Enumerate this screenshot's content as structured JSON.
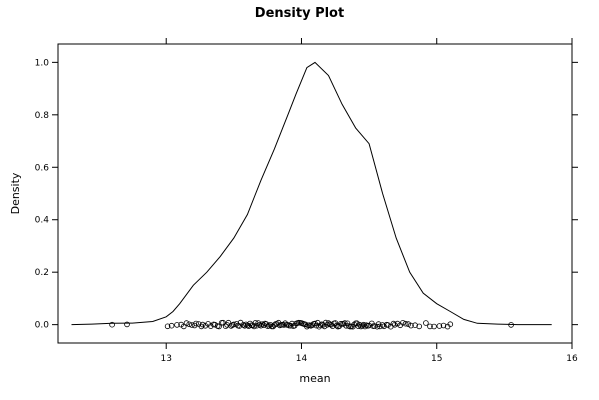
{
  "chart_data": {
    "type": "density",
    "title": "Density Plot",
    "xlabel": "mean",
    "ylabel": "Density",
    "xlim": [
      12.2,
      16.0
    ],
    "ylim": [
      -0.07,
      1.07
    ],
    "x_ticks": [
      13,
      14,
      15,
      16
    ],
    "x_tick_labels": [
      "13",
      "14",
      "15",
      "16"
    ],
    "y_ticks": [
      0.0,
      0.2,
      0.4,
      0.6,
      0.8,
      1.0
    ],
    "y_tick_labels": [
      "0.0",
      "0.2",
      "0.4",
      "0.6",
      "0.8",
      "1.0"
    ],
    "grid": false,
    "density_curve": {
      "x": [
        12.3,
        12.45,
        12.6,
        12.75,
        12.9,
        13.0,
        13.05,
        13.1,
        13.2,
        13.3,
        13.4,
        13.5,
        13.6,
        13.7,
        13.8,
        13.9,
        13.96,
        14.04,
        14.1,
        14.2,
        14.3,
        14.4,
        14.5,
        14.6,
        14.7,
        14.8,
        14.9,
        15.0,
        15.1,
        15.2,
        15.3,
        15.45,
        15.6,
        15.75,
        15.85
      ],
      "y": [
        0.0,
        0.002,
        0.005,
        0.006,
        0.012,
        0.03,
        0.05,
        0.08,
        0.15,
        0.2,
        0.26,
        0.33,
        0.42,
        0.55,
        0.67,
        0.8,
        0.88,
        0.98,
        1.0,
        0.95,
        0.84,
        0.75,
        0.69,
        0.5,
        0.33,
        0.2,
        0.12,
        0.08,
        0.05,
        0.02,
        0.005,
        0.002,
        0.0,
        0.0,
        0.0
      ]
    },
    "rug_points": [
      12.6,
      12.71,
      13.01,
      13.04,
      13.08,
      13.11,
      13.13,
      13.15,
      13.17,
      13.19,
      13.21,
      13.22,
      13.24,
      13.26,
      13.27,
      13.29,
      13.31,
      13.33,
      13.35,
      13.36,
      13.38,
      13.39,
      13.41,
      13.42,
      13.44,
      13.45,
      13.46,
      13.48,
      13.49,
      13.5,
      13.52,
      13.53,
      13.54,
      13.55,
      13.57,
      13.58,
      13.59,
      13.6,
      13.61,
      13.62,
      13.63,
      13.64,
      13.65,
      13.66,
      13.67,
      13.68,
      13.69,
      13.7,
      13.71,
      13.72,
      13.73,
      13.74,
      13.75,
      13.76,
      13.77,
      13.78,
      13.79,
      13.8,
      13.81,
      13.82,
      13.83,
      13.84,
      13.85,
      13.86,
      13.87,
      13.88,
      13.89,
      13.9,
      13.91,
      13.92,
      13.93,
      13.94,
      13.95,
      13.96,
      13.97,
      13.98,
      13.99,
      14.0,
      14.01,
      14.02,
      14.03,
      14.04,
      14.05,
      14.06,
      14.07,
      14.08,
      14.09,
      14.1,
      14.11,
      14.12,
      14.13,
      14.14,
      14.15,
      14.16,
      14.17,
      14.18,
      14.19,
      14.2,
      14.21,
      14.22,
      14.23,
      14.24,
      14.25,
      14.26,
      14.27,
      14.28,
      14.29,
      14.3,
      14.31,
      14.32,
      14.33,
      14.34,
      14.35,
      14.36,
      14.37,
      14.38,
      14.39,
      14.4,
      14.41,
      14.42,
      14.43,
      14.44,
      14.45,
      14.46,
      14.47,
      14.48,
      14.49,
      14.5,
      14.52,
      14.53,
      14.54,
      14.56,
      14.57,
      14.58,
      14.6,
      14.61,
      14.63,
      14.64,
      14.66,
      14.68,
      14.69,
      14.71,
      14.73,
      14.75,
      14.77,
      14.79,
      14.81,
      14.84,
      14.87,
      14.92,
      14.95,
      14.98,
      15.02,
      15.05,
      15.08,
      15.1,
      15.55
    ]
  }
}
